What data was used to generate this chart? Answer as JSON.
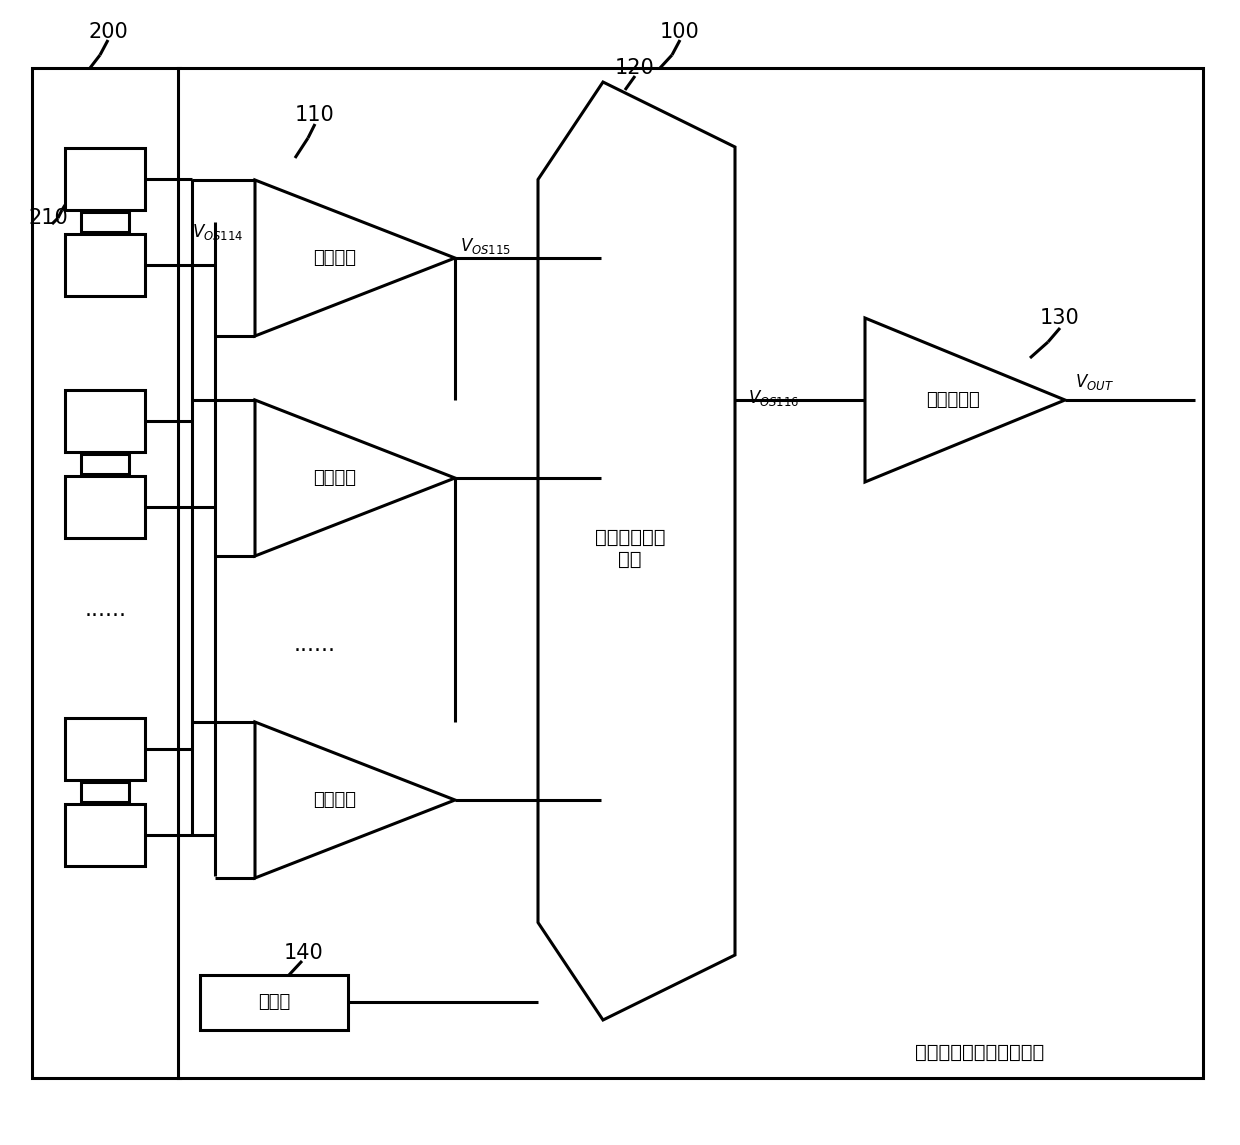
{
  "bg": "#ffffff",
  "lc": "#000000",
  "lw": 2.2,
  "title": "电池包电芯电压采样系统",
  "s200": "200",
  "s100": "100",
  "s110": "110",
  "s120": "120",
  "s130": "130",
  "s140": "140",
  "s210": "210",
  "cydyuan": "采样单元",
  "dtdxq": "多通道信号选\n择器",
  "scchq": "输出缓冲器",
  "yimaqi": "译码器",
  "dots": "......",
  "fs_num": 15,
  "fs_cn": 13,
  "fs_title": 14,
  "fs_volt": 12
}
